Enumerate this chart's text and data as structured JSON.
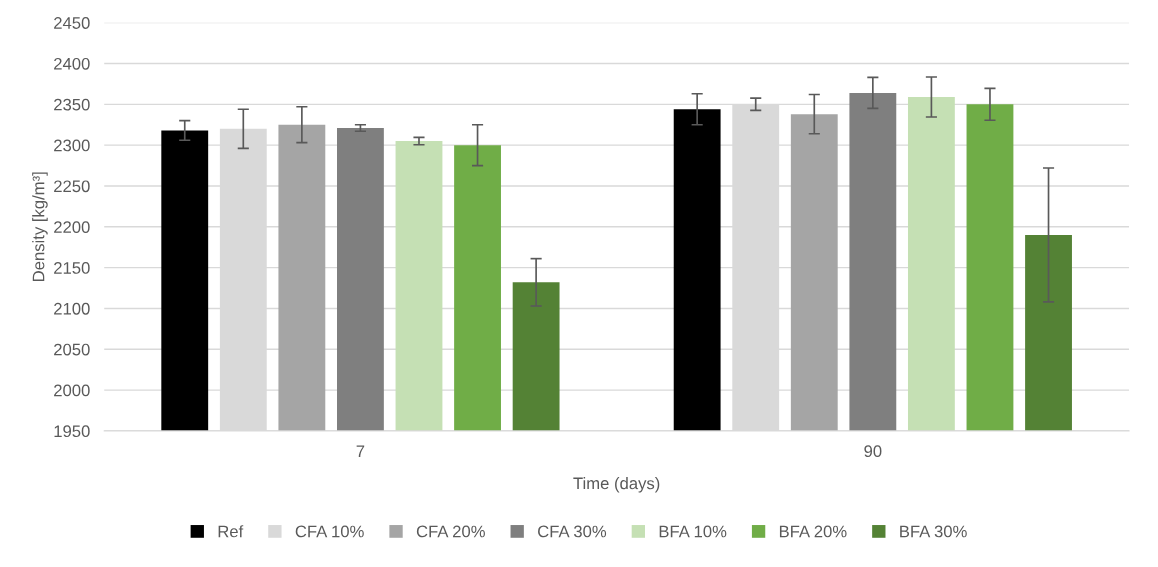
{
  "chart_data": {
    "type": "bar",
    "xlabel": "Time (days)",
    "ylabel": "Density [kg/m³]",
    "categories": [
      "7",
      "90"
    ],
    "series": [
      {
        "name": "Ref",
        "color": "#000000",
        "values": [
          2318,
          2344
        ],
        "errors": [
          12,
          19
        ]
      },
      {
        "name": "CFA 10%",
        "color": "#d9d9d9",
        "values": [
          2320,
          2350
        ],
        "errors": [
          24,
          7.5
        ]
      },
      {
        "name": "CFA 20%",
        "color": "#a5a5a5",
        "values": [
          2325,
          2338
        ],
        "errors": [
          22,
          24
        ]
      },
      {
        "name": "CFA 30%",
        "color": "#7f7f7f",
        "values": [
          2321,
          2364
        ],
        "errors": [
          4,
          19
        ]
      },
      {
        "name": "BFA 10%",
        "color": "#c5e0b4",
        "values": [
          2305,
          2359
        ],
        "errors": [
          4.5,
          24.5
        ]
      },
      {
        "name": "BFA 20%",
        "color": "#70ad47",
        "values": [
          2300,
          2350
        ],
        "errors": [
          25,
          19.5
        ]
      },
      {
        "name": "BFA 30%",
        "color": "#548235",
        "values": [
          2132,
          2190
        ],
        "errors": [
          29,
          82
        ]
      }
    ],
    "ylim": [
      1950,
      2450
    ],
    "yticks": [
      1950,
      2000,
      2050,
      2100,
      2150,
      2200,
      2250,
      2300,
      2350,
      2400,
      2450
    ],
    "grid": "y",
    "legend": "bottom"
  }
}
